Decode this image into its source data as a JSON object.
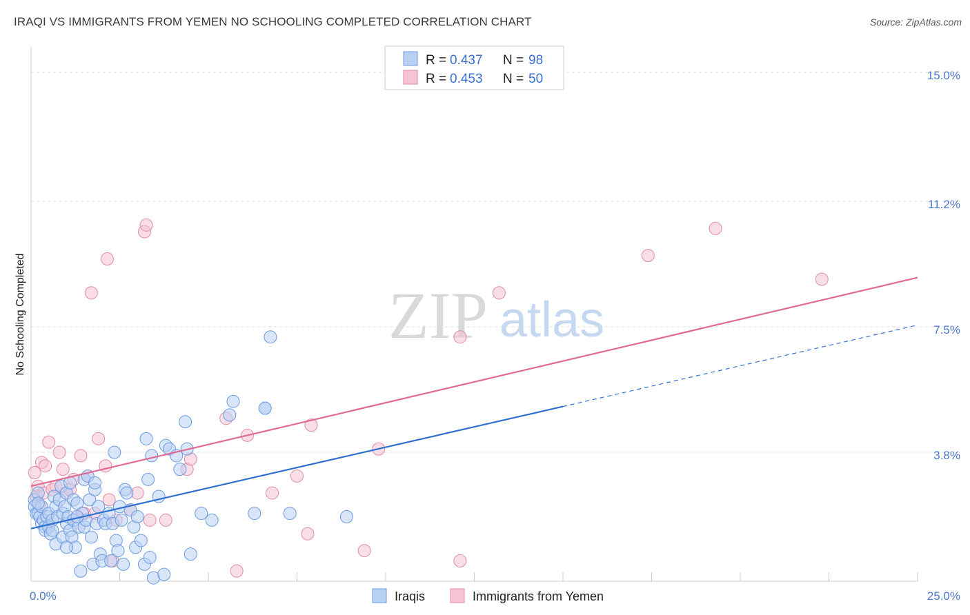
{
  "title": "IRAQI VS IMMIGRANTS FROM YEMEN NO SCHOOLING COMPLETED CORRELATION CHART",
  "source": "Source: ZipAtlas.com",
  "watermark": {
    "zip": "ZIP",
    "atlas": "atlas"
  },
  "legend": {
    "rows": [
      {
        "r_label": "R =",
        "r_value": "0.437",
        "n_label": "N =",
        "n_value": "98"
      },
      {
        "r_label": "R =",
        "r_value": "0.453",
        "n_label": "N =",
        "n_value": "50"
      }
    ]
  },
  "chart_data": {
    "type": "scatter",
    "ylabel": "No Schooling Completed",
    "xlim": [
      0,
      25
    ],
    "ylim": [
      0,
      15.75
    ],
    "x_tick_labels": [
      {
        "value": 0,
        "label": "0.0%"
      },
      {
        "value": 25,
        "label": "25.0%"
      }
    ],
    "y_tick_labels": [
      {
        "value": 3.8,
        "label": "3.8%"
      },
      {
        "value": 7.5,
        "label": "7.5%"
      },
      {
        "value": 11.2,
        "label": "11.2%"
      },
      {
        "value": 15.0,
        "label": "15.0%"
      }
    ],
    "series": [
      {
        "name": "Iraqis",
        "color": "#6a9be0",
        "fill": "#b9d0f2",
        "line_color": "#2f6fd0",
        "trend": {
          "x0": 0,
          "y0": 1.55,
          "x1": 15,
          "y1": 5.15,
          "dash_x1": 25,
          "dash_y1": 7.55
        },
        "points": [
          [
            0.1,
            2.4
          ],
          [
            0.1,
            2.2
          ],
          [
            0.15,
            2.0
          ],
          [
            0.2,
            2.6
          ],
          [
            0.2,
            2.0
          ],
          [
            0.25,
            1.9
          ],
          [
            0.3,
            2.2
          ],
          [
            0.3,
            1.7
          ],
          [
            0.35,
            1.8
          ],
          [
            0.4,
            1.6
          ],
          [
            0.4,
            1.5
          ],
          [
            0.45,
            1.9
          ],
          [
            0.5,
            1.6
          ],
          [
            0.5,
            2.0
          ],
          [
            0.55,
            1.4
          ],
          [
            0.6,
            1.8
          ],
          [
            0.65,
            2.5
          ],
          [
            0.7,
            2.2
          ],
          [
            0.7,
            1.1
          ],
          [
            0.75,
            1.9
          ],
          [
            0.8,
            2.4
          ],
          [
            0.85,
            2.8
          ],
          [
            0.9,
            2.0
          ],
          [
            0.9,
            1.3
          ],
          [
            0.95,
            2.2
          ],
          [
            1.0,
            2.6
          ],
          [
            1.0,
            1.7
          ],
          [
            1.05,
            1.9
          ],
          [
            1.1,
            1.5
          ],
          [
            1.1,
            2.9
          ],
          [
            1.15,
            1.3
          ],
          [
            1.2,
            2.4
          ],
          [
            1.2,
            1.8
          ],
          [
            1.25,
            1.0
          ],
          [
            1.3,
            2.3
          ],
          [
            1.35,
            1.6
          ],
          [
            1.4,
            0.3
          ],
          [
            1.45,
            2.0
          ],
          [
            1.5,
            3.0
          ],
          [
            1.5,
            1.6
          ],
          [
            1.55,
            1.8
          ],
          [
            1.6,
            3.1
          ],
          [
            1.65,
            2.4
          ],
          [
            1.7,
            1.3
          ],
          [
            1.75,
            0.5
          ],
          [
            1.8,
            2.7
          ],
          [
            1.8,
            2.9
          ],
          [
            1.85,
            1.7
          ],
          [
            1.9,
            2.2
          ],
          [
            1.95,
            0.8
          ],
          [
            2.0,
            0.6
          ],
          [
            2.05,
            1.8
          ],
          [
            2.1,
            1.7
          ],
          [
            2.2,
            2.0
          ],
          [
            2.25,
            0.6
          ],
          [
            2.3,
            1.7
          ],
          [
            2.35,
            3.8
          ],
          [
            2.4,
            1.2
          ],
          [
            2.45,
            0.9
          ],
          [
            2.5,
            2.2
          ],
          [
            2.55,
            1.8
          ],
          [
            2.6,
            0.5
          ],
          [
            2.65,
            2.7
          ],
          [
            2.7,
            2.6
          ],
          [
            2.8,
            2.1
          ],
          [
            2.9,
            1.6
          ],
          [
            2.95,
            1.0
          ],
          [
            3.0,
            1.9
          ],
          [
            3.1,
            1.2
          ],
          [
            3.2,
            0.5
          ],
          [
            3.25,
            4.2
          ],
          [
            3.3,
            3.0
          ],
          [
            3.35,
            0.7
          ],
          [
            3.4,
            3.7
          ],
          [
            3.45,
            0.1
          ],
          [
            3.6,
            2.5
          ],
          [
            3.75,
            0.2
          ],
          [
            3.8,
            4.0
          ],
          [
            3.9,
            3.9
          ],
          [
            4.1,
            3.7
          ],
          [
            4.2,
            3.3
          ],
          [
            4.35,
            4.7
          ],
          [
            4.4,
            3.9
          ],
          [
            4.5,
            0.8
          ],
          [
            4.8,
            2.0
          ],
          [
            5.1,
            1.8
          ],
          [
            5.6,
            4.9
          ],
          [
            5.7,
            5.3
          ],
          [
            6.3,
            2.0
          ],
          [
            6.6,
            5.1
          ],
          [
            6.6,
            5.1
          ],
          [
            6.75,
            7.2
          ],
          [
            7.3,
            2.0
          ],
          [
            8.9,
            1.9
          ],
          [
            0.2,
            2.3
          ],
          [
            0.6,
            1.5
          ],
          [
            1.0,
            1.0
          ],
          [
            1.3,
            1.9
          ]
        ]
      },
      {
        "name": "Immigrants from Yemen",
        "color": "#e28aa6",
        "fill": "#f6c3d2",
        "line_color": "#e06a93",
        "trend": {
          "x0": 0,
          "y0": 2.8,
          "x1": 25,
          "y1": 8.95
        },
        "points": [
          [
            0.1,
            3.2
          ],
          [
            0.15,
            2.5
          ],
          [
            0.2,
            2.8
          ],
          [
            0.3,
            3.5
          ],
          [
            0.35,
            2.6
          ],
          [
            0.4,
            3.4
          ],
          [
            0.5,
            4.1
          ],
          [
            0.6,
            2.7
          ],
          [
            0.7,
            2.8
          ],
          [
            0.8,
            3.8
          ],
          [
            0.9,
            3.3
          ],
          [
            1.0,
            2.6
          ],
          [
            1.1,
            2.7
          ],
          [
            1.2,
            3.0
          ],
          [
            1.3,
            1.9
          ],
          [
            1.4,
            3.7
          ],
          [
            1.5,
            2.0
          ],
          [
            1.6,
            3.1
          ],
          [
            1.7,
            8.5
          ],
          [
            1.8,
            2.0
          ],
          [
            1.9,
            4.2
          ],
          [
            2.1,
            3.4
          ],
          [
            2.15,
            9.5
          ],
          [
            2.2,
            2.4
          ],
          [
            2.3,
            0.6
          ],
          [
            2.4,
            1.8
          ],
          [
            2.8,
            2.1
          ],
          [
            3.0,
            2.6
          ],
          [
            3.2,
            10.3
          ],
          [
            3.25,
            10.5
          ],
          [
            3.35,
            1.8
          ],
          [
            3.8,
            1.8
          ],
          [
            4.4,
            3.3
          ],
          [
            4.5,
            3.6
          ],
          [
            5.5,
            4.8
          ],
          [
            5.8,
            0.3
          ],
          [
            6.1,
            4.3
          ],
          [
            6.8,
            2.6
          ],
          [
            7.5,
            3.1
          ],
          [
            7.8,
            1.4
          ],
          [
            7.9,
            4.6
          ],
          [
            9.4,
            0.9
          ],
          [
            9.8,
            3.9
          ],
          [
            12.1,
            0.6
          ],
          [
            12.1,
            7.2
          ],
          [
            13.2,
            8.5
          ],
          [
            17.4,
            9.6
          ],
          [
            19.3,
            10.4
          ],
          [
            22.3,
            8.9
          ],
          [
            0.25,
            2.2
          ]
        ]
      }
    ]
  },
  "bottom_legend": [
    {
      "label": "Iraqis"
    },
    {
      "label": "Immigrants from Yemen"
    }
  ]
}
